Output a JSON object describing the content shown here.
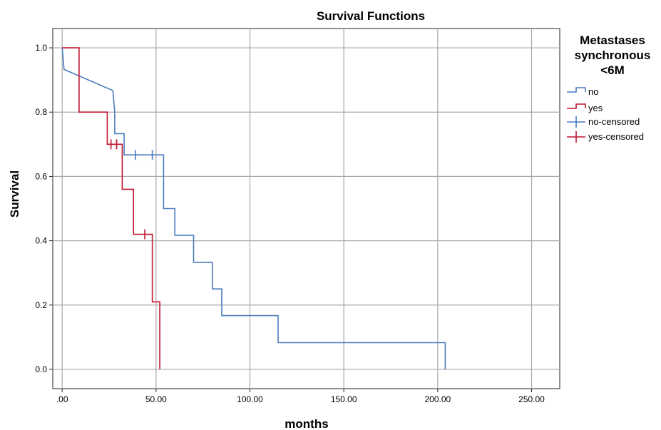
{
  "chart_data": {
    "type": "line",
    "title": "Survival Functions",
    "xlabel": "months",
    "ylabel": "Survival",
    "xlim": [
      -5,
      265
    ],
    "ylim": [
      -0.06,
      1.06
    ],
    "xticks": [
      0,
      50,
      100,
      150,
      200,
      250
    ],
    "xtick_labels": [
      ".00",
      "50.00",
      "100.00",
      "150.00",
      "200.00",
      "250.00"
    ],
    "yticks": [
      0,
      0.2,
      0.4,
      0.6,
      0.8,
      1.0
    ],
    "ytick_labels": [
      "0.0",
      "0.2",
      "0.4",
      "0.6",
      "0.8",
      "1.0"
    ],
    "grid": true,
    "legend": {
      "title_lines": [
        "Metastases",
        "synchronous",
        "<6M"
      ],
      "placement": "right",
      "entries": [
        "no",
        "yes",
        "no-censored",
        "yes-censored"
      ]
    },
    "series": [
      {
        "name": "no",
        "color": "#4a7cc0",
        "steps": [
          [
            0,
            1.0
          ],
          [
            1,
            0.933
          ],
          [
            27,
            0.867
          ],
          [
            28,
            0.8
          ],
          [
            28,
            0.733
          ],
          [
            33,
            0.733
          ],
          [
            33,
            0.667
          ],
          [
            54,
            0.667
          ],
          [
            54,
            0.5
          ],
          [
            60,
            0.5
          ],
          [
            60,
            0.417
          ],
          [
            70,
            0.417
          ],
          [
            70,
            0.333
          ],
          [
            80,
            0.333
          ],
          [
            80,
            0.25
          ],
          [
            85,
            0.25
          ],
          [
            85,
            0.167
          ],
          [
            115,
            0.167
          ],
          [
            115,
            0.083
          ],
          [
            204,
            0.083
          ],
          [
            204,
            0.0
          ]
        ],
        "censored": [
          [
            39,
            0.667
          ],
          [
            48,
            0.667
          ]
        ]
      },
      {
        "name": "yes",
        "color": "#c0152f",
        "steps": [
          [
            0,
            1.0
          ],
          [
            9,
            1.0
          ],
          [
            9,
            0.8
          ],
          [
            24,
            0.8
          ],
          [
            24,
            0.7
          ],
          [
            32,
            0.7
          ],
          [
            32,
            0.56
          ],
          [
            38,
            0.56
          ],
          [
            38,
            0.42
          ],
          [
            48,
            0.42
          ],
          [
            48,
            0.21
          ],
          [
            52,
            0.21
          ],
          [
            52,
            0.0
          ]
        ],
        "censored": [
          [
            26,
            0.7
          ],
          [
            29,
            0.7
          ],
          [
            44,
            0.42
          ]
        ]
      }
    ]
  }
}
